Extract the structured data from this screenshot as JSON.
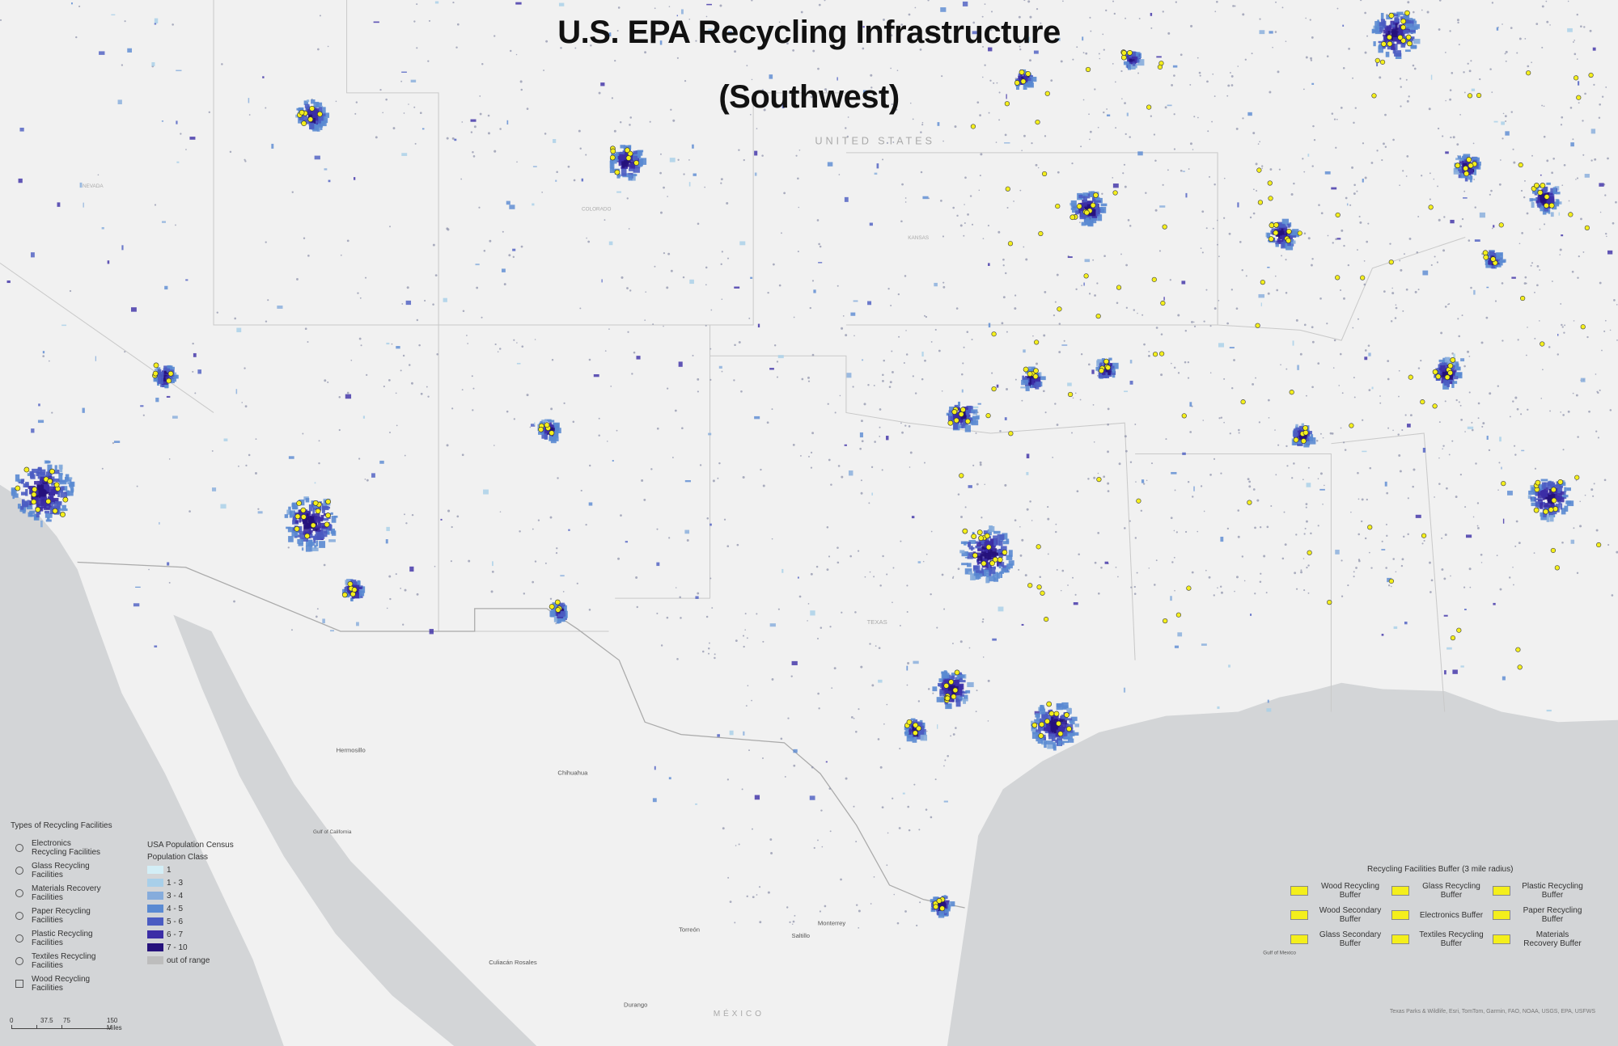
{
  "header": {
    "title": "U.S. EPA Recycling Infrastructure",
    "subtitle": "(Southwest)"
  },
  "facility_legend": {
    "title": "Types of Recycling Facilities",
    "items": [
      "Electronics Recycling Facilities",
      "Glass Recycling Facilities",
      "Materials Recovery Facilities",
      "Paper Recycling Facilities",
      "Plastic Recycling Facilities",
      "Textiles Recycling Facilities",
      "Wood Recycling Facilities"
    ]
  },
  "population_legend": {
    "title": "USA Population Census",
    "subtitle": "Population Class",
    "classes": [
      {
        "label": "1",
        "color": "#d3eef6"
      },
      {
        "label": "1 - 3",
        "color": "#a8cfe9"
      },
      {
        "label": "3 - 4",
        "color": "#86acdc"
      },
      {
        "label": "4 - 5",
        "color": "#5a8ad2"
      },
      {
        "label": "5 - 6",
        "color": "#4b5cc2"
      },
      {
        "label": "6 - 7",
        "color": "#3c2ea6"
      },
      {
        "label": "7 - 10",
        "color": "#26127c"
      },
      {
        "label": "out of range",
        "color": "#bdbdbd"
      }
    ]
  },
  "buffer_legend": {
    "title": "Recycling Facilities Buffer (3 mile radius)",
    "items": [
      "Wood Recycling Buffer",
      "Glass Recycling Buffer",
      "Plastic Recycling Buffer",
      "Wood Secondary Buffer",
      "Electronics Buffer",
      "Paper Recycling Buffer",
      "Glass Secondary Buffer",
      "Textiles Recycling Buffer",
      "Materials Recovery Buffer"
    ]
  },
  "scale_bar": {
    "labels": [
      "0",
      "37.5",
      "75",
      "150 Miles"
    ]
  },
  "places": [
    "UNITED STATES",
    "NEVADA",
    "COLORADO",
    "KANSAS",
    "TEXAS",
    "Hermosillo",
    "Chihuahua",
    "Torreón",
    "Saltillo",
    "Monterrey",
    "Culiacán Rosales",
    "Durango",
    "MÉXICO",
    "Gulf of California",
    "Gulf of Mexico"
  ],
  "attribution": "Texas Parks & Wildlife, Esri, TomTom, Garmin, FAO, NOAA, USGS, EPA, USFWS"
}
